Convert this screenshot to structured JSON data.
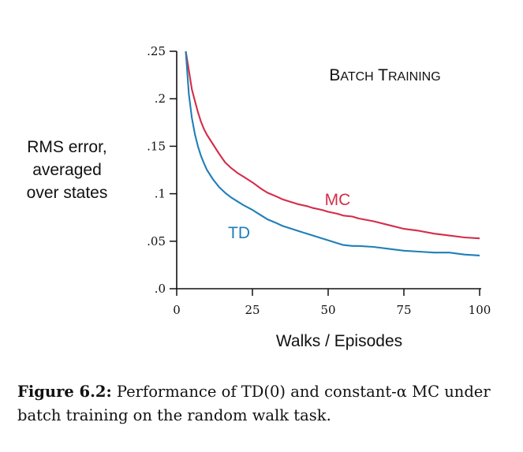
{
  "chart_data": {
    "type": "line",
    "title": "Batch Training",
    "xlabel": "Walks / Episodes",
    "ylabel_lines": [
      "RMS error,",
      "averaged",
      "over states"
    ],
    "xlim": [
      0,
      100
    ],
    "ylim": [
      0,
      0.25
    ],
    "xticks": [
      0,
      25,
      50,
      75,
      100
    ],
    "xtick_labels": [
      "0",
      "25",
      "50",
      "75",
      "100"
    ],
    "yticks": [
      0,
      0.05,
      0.1,
      0.15,
      0.2,
      0.25
    ],
    "ytick_labels": [
      ".0",
      ".05",
      ".1",
      ".15",
      ".2",
      ".25"
    ],
    "grid": false,
    "series": [
      {
        "name": "MC",
        "color": "#d42d48",
        "x": [
          3,
          4,
          5,
          6,
          7,
          8,
          9,
          10,
          12,
          14,
          16,
          18,
          20,
          22,
          25,
          28,
          30,
          33,
          35,
          38,
          40,
          43,
          45,
          48,
          50,
          53,
          55,
          58,
          60,
          65,
          70,
          75,
          80,
          85,
          90,
          95,
          100
        ],
        "y": [
          0.25,
          0.23,
          0.21,
          0.198,
          0.186,
          0.176,
          0.168,
          0.162,
          0.152,
          0.142,
          0.133,
          0.127,
          0.122,
          0.118,
          0.112,
          0.105,
          0.101,
          0.097,
          0.094,
          0.091,
          0.089,
          0.087,
          0.085,
          0.083,
          0.081,
          0.079,
          0.077,
          0.076,
          0.074,
          0.071,
          0.067,
          0.063,
          0.061,
          0.058,
          0.056,
          0.054,
          0.053
        ]
      },
      {
        "name": "TD",
        "color": "#1f7fb8",
        "x": [
          3,
          4,
          5,
          6,
          7,
          8,
          9,
          10,
          12,
          14,
          16,
          18,
          20,
          22,
          25,
          28,
          30,
          33,
          35,
          38,
          40,
          43,
          45,
          48,
          50,
          53,
          55,
          58,
          60,
          65,
          70,
          75,
          80,
          85,
          90,
          95,
          100
        ],
        "y": [
          0.25,
          0.205,
          0.18,
          0.163,
          0.15,
          0.14,
          0.132,
          0.125,
          0.115,
          0.107,
          0.101,
          0.096,
          0.092,
          0.088,
          0.083,
          0.077,
          0.073,
          0.069,
          0.066,
          0.063,
          0.061,
          0.058,
          0.056,
          0.053,
          0.051,
          0.048,
          0.046,
          0.045,
          0.045,
          0.044,
          0.042,
          0.04,
          0.039,
          0.038,
          0.038,
          0.036,
          0.035
        ]
      }
    ]
  },
  "caption": {
    "label": "Figure 6.2:",
    "text": " Performance of TD(0) and constant-α MC under batch training on the random walk task."
  }
}
